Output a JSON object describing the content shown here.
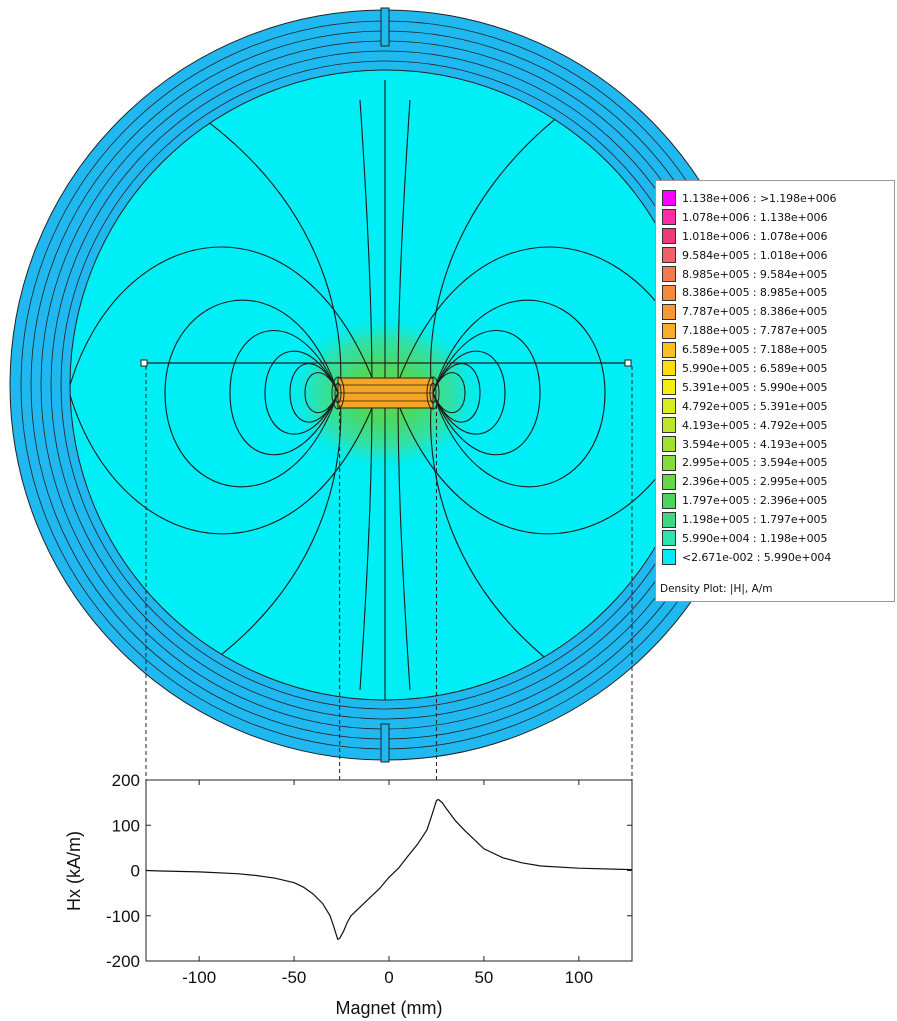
{
  "legend": {
    "ranges": [
      {
        "label": "1.138e+006 : >1.198e+006",
        "color": "#ff00ff"
      },
      {
        "label": "1.078e+006 : 1.138e+006",
        "color": "#ff2ca5"
      },
      {
        "label": "1.018e+006 : 1.078e+006",
        "color": "#ee3a78"
      },
      {
        "label": "9.584e+005 : 1.018e+006",
        "color": "#f4606a"
      },
      {
        "label": "8.985e+005 : 9.584e+005",
        "color": "#f57a4e"
      },
      {
        "label": "8.386e+005 : 8.985e+005",
        "color": "#f58a3c"
      },
      {
        "label": "7.787e+005 : 8.386e+005",
        "color": "#f79a34"
      },
      {
        "label": "7.188e+005 : 7.787e+005",
        "color": "#f8ac2a"
      },
      {
        "label": "6.589e+005 : 7.188e+005",
        "color": "#fac020"
      },
      {
        "label": "5.990e+005 : 6.589e+005",
        "color": "#fcdc0e"
      },
      {
        "label": "5.391e+005 : 5.990e+005",
        "color": "#f2ee10"
      },
      {
        "label": "4.792e+005 : 5.391e+005",
        "color": "#d8ec1e"
      },
      {
        "label": "4.193e+005 : 4.792e+005",
        "color": "#bce62a"
      },
      {
        "label": "3.594e+005 : 4.193e+005",
        "color": "#a0e034"
      },
      {
        "label": "2.995e+005 : 3.594e+005",
        "color": "#84dc3e"
      },
      {
        "label": "2.396e+005 : 2.995e+005",
        "color": "#66d848"
      },
      {
        "label": "1.797e+005 : 2.396e+005",
        "color": "#4cd460"
      },
      {
        "label": "1.198e+005 : 1.797e+005",
        "color": "#3cd884"
      },
      {
        "label": "5.990e+004 : 1.198e+005",
        "color": "#2ce2b0"
      },
      {
        "label": "<2.671e-002 : 5.990e+004",
        "color": "#00ecf6"
      }
    ],
    "caption": "Density Plot: |H|, A/m"
  },
  "colors": {
    "field_background": "#00eef6",
    "outer_ring": "#1fb8f0",
    "magnet": "#f5a623",
    "near_field": "#3fe0b0"
  },
  "chart_data": {
    "type": "line",
    "title": "",
    "xlabel": "Magnet (mm)",
    "ylabel": "Hx (kA/m)",
    "xlim": [
      -128,
      128
    ],
    "ylim": [
      -200,
      200
    ],
    "xticks": [
      -100,
      -50,
      0,
      50,
      100
    ],
    "yticks": [
      200,
      100,
      0,
      -100,
      -200
    ],
    "grid": false,
    "series": [
      {
        "name": "",
        "x": [
          -128,
          -120,
          -100,
          -80,
          -70,
          -60,
          -50,
          -45,
          -40,
          -35,
          -31,
          -29,
          -27,
          -26,
          -24,
          -22,
          -20,
          -15,
          -10,
          -5,
          0,
          5,
          10,
          15,
          20,
          23,
          25,
          26,
          28,
          30,
          35,
          40,
          45,
          50,
          60,
          70,
          80,
          100,
          128
        ],
        "y": [
          0,
          -1,
          -3,
          -7,
          -11,
          -17,
          -27,
          -37,
          -52,
          -73,
          -100,
          -125,
          -152,
          -150,
          -135,
          -115,
          -100,
          -80,
          -60,
          -40,
          -15,
          5,
          32,
          58,
          90,
          128,
          155,
          157,
          150,
          138,
          110,
          88,
          68,
          48,
          28,
          17,
          10,
          5,
          2
        ]
      }
    ],
    "guide_lines_x": [
      -128,
      -26,
      25,
      128
    ]
  }
}
